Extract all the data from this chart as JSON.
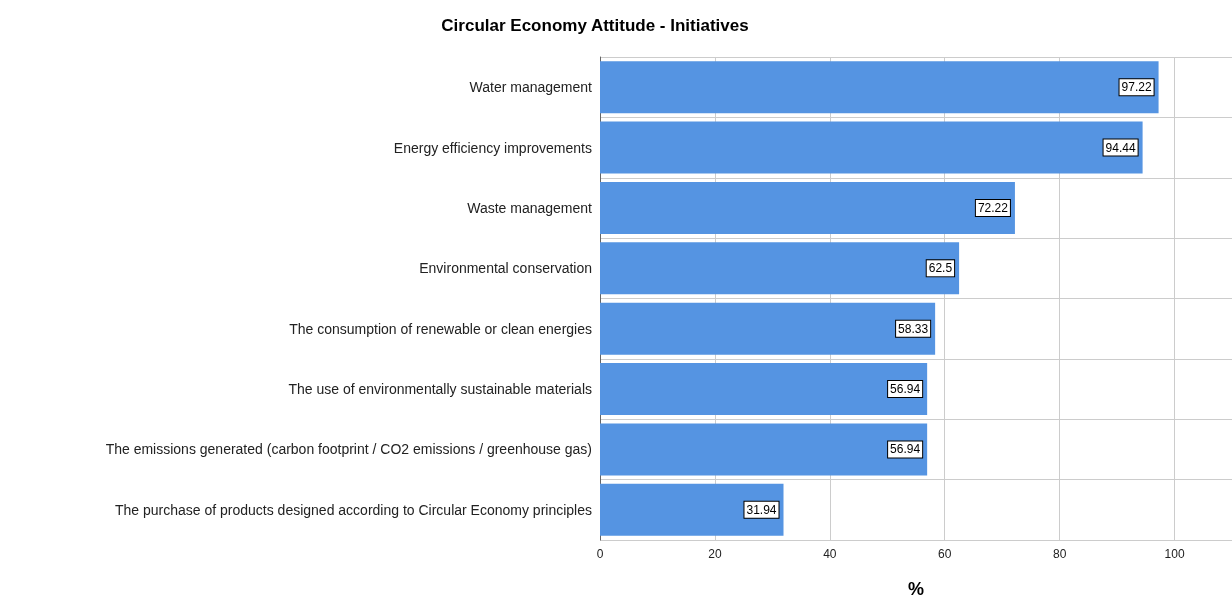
{
  "chart_data": {
    "type": "bar",
    "orientation": "horizontal",
    "title": "Circular Economy Attitude - Initiatives",
    "xlabel": "%",
    "categories": [
      "Water management",
      "Energy efficiency improvements",
      "Waste management",
      "Environmental conservation",
      "The consumption of renewable or clean energies",
      "The use of environmentally sustainable materials",
      "The emissions generated (carbon footprint / CO2 emissions / greenhouse gas)",
      "The purchase of products designed according to Circular Economy principles"
    ],
    "values": [
      97.22,
      94.44,
      72.22,
      62.5,
      58.33,
      56.94,
      56.94,
      31.94
    ],
    "color": "#5594e2",
    "xlim": [
      0,
      110
    ],
    "xticks": [
      0,
      20,
      40,
      60,
      80,
      100
    ],
    "grid": true,
    "data_labels": true
  }
}
